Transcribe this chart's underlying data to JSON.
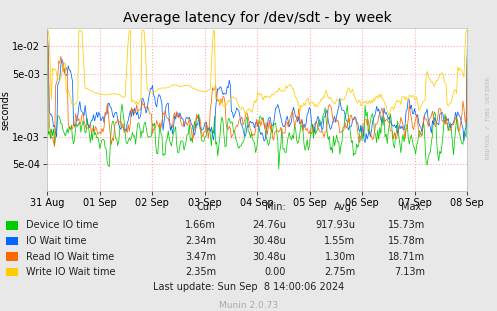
{
  "title": "Average latency for /dev/sdt - by week",
  "ylabel": "seconds",
  "watermark": "RRDTOOL / TOBI OETIKER",
  "munin_version": "Munin 2.0.73",
  "last_update": "Last update: Sun Sep  8 14:00:06 2024",
  "x_ticks": [
    "31 Aug",
    "01 Sep",
    "02 Sep",
    "03 Sep",
    "04 Sep",
    "05 Sep",
    "06 Sep",
    "07 Sep",
    "08 Sep"
  ],
  "legend": [
    {
      "label": "Device IO time",
      "color": "#00cc00"
    },
    {
      "label": "IO Wait time",
      "color": "#0066ff"
    },
    {
      "label": "Read IO Wait time",
      "color": "#ff6600"
    },
    {
      "label": "Write IO Wait time",
      "color": "#ffcc00"
    }
  ],
  "table_headers": [
    "Cur:",
    "Min:",
    "Avg:",
    "Max:"
  ],
  "table_data": [
    [
      "1.66m",
      "24.76u",
      "917.93u",
      "15.73m"
    ],
    [
      "2.34m",
      "30.48u",
      "1.55m",
      "15.78m"
    ],
    [
      "3.47m",
      "30.48u",
      "1.30m",
      "18.71m"
    ],
    [
      "2.35m",
      "0.00",
      "2.75m",
      "7.13m"
    ]
  ],
  "bg_color": "#e8e8e8",
  "plot_bg_color": "#ffffff",
  "grid_color": "#ffaaaa",
  "title_fontsize": 10,
  "axis_fontsize": 7,
  "table_fontsize": 7
}
